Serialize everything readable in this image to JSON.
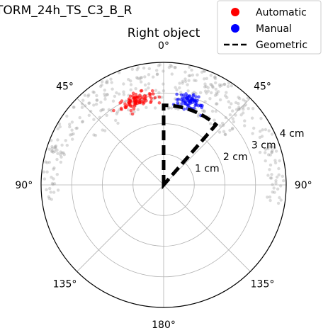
{
  "figure_title": "TORM_24h_TS_C3_B_R",
  "chart_data": {
    "type": "scatter",
    "projection": "polar",
    "title": "Right object",
    "theta_zero": "top",
    "theta_direction": "mirrored",
    "theta_tick_labels": [
      "0°",
      "45°",
      "45°",
      "90°",
      "90°",
      "135°",
      "135°",
      "180°"
    ],
    "r_ticks": [
      1,
      2,
      3,
      4
    ],
    "r_tick_labels": [
      "1 cm",
      "2 cm",
      "3 cm",
      "4 cm"
    ],
    "rlim": [
      0,
      4
    ],
    "grid": true,
    "legend": {
      "placement": "top-right",
      "entries": [
        {
          "label": "Automatic",
          "color": "#ff0000",
          "marker": "circle"
        },
        {
          "label": "Manual",
          "color": "#0000ff",
          "marker": "circle"
        },
        {
          "label": "Geometric",
          "color": "#000000",
          "marker": "dashed-line"
        }
      ]
    },
    "series": [
      {
        "name": "Automatic",
        "color": "#ff0000",
        "cluster": {
          "theta_center_deg": -18,
          "theta_spread_deg": 11,
          "r_center_cm": 2.9,
          "r_spread_cm": 0.22,
          "count": 80
        }
      },
      {
        "name": "Manual",
        "color": "#0000ff",
        "cluster": {
          "theta_center_deg": 17,
          "theta_spread_deg": 10,
          "r_center_cm": 2.85,
          "r_spread_cm": 0.22,
          "count": 70
        }
      },
      {
        "name": "Geometric",
        "color": "#000000",
        "style": "dashed",
        "outline": {
          "theta_start_deg": 0,
          "theta_end_deg": 41,
          "r_cm": 2.6
        }
      }
    ],
    "background_points": {
      "color": "#999999",
      "bands": [
        {
          "theta_min_deg": -75,
          "theta_max_deg": 75,
          "r_min_cm": 3.3,
          "r_max_cm": 3.95,
          "count": 200
        },
        {
          "theta_min_deg": -55,
          "theta_max_deg": 55,
          "r_min_cm": 2.5,
          "r_max_cm": 3.3,
          "count": 100
        },
        {
          "theta_min_deg": -100,
          "theta_max_deg": -70,
          "r_min_cm": 3.4,
          "r_max_cm": 3.95,
          "count": 35
        },
        {
          "theta_min_deg": 70,
          "theta_max_deg": 100,
          "r_min_cm": 3.4,
          "r_max_cm": 3.95,
          "count": 35
        }
      ]
    }
  }
}
